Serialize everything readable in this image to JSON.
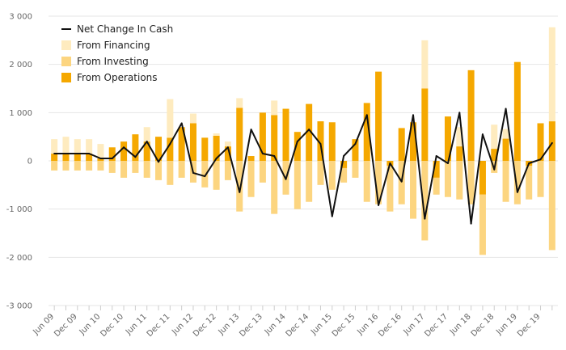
{
  "chart_data": {
    "type": "bar",
    "stacked": true,
    "title": "",
    "xlabel": "",
    "ylabel": "",
    "ylim": [
      -3000,
      3000
    ],
    "yticks": [
      -3000,
      -2000,
      -1000,
      0,
      1000,
      2000,
      3000
    ],
    "ytick_labels": [
      "-3 000",
      "-2 000",
      "-1 000",
      "0",
      "1 000",
      "2 000",
      "3 000"
    ],
    "grid": true,
    "legend_position": "top-left",
    "xtick_labels": [
      "Jun 09",
      "Dec 09",
      "Jun 10",
      "Dec 10",
      "Jun 11",
      "Dec 11",
      "Jun 12",
      "Dec 12",
      "Jun 13",
      "Dec 13",
      "Jun 14",
      "Dec 14",
      "Jun 15",
      "Dec 15",
      "Jun 16",
      "Dec 16",
      "Jun 17",
      "Dec 17",
      "Jun 18",
      "Dec 18",
      "Jun 19",
      "Dec 19"
    ],
    "x": [
      "Jun 09",
      "Sep 09",
      "Dec 09",
      "Mar 10",
      "Jun 10",
      "Sep 10",
      "Dec 10",
      "Mar 11",
      "Jun 11",
      "Sep 11",
      "Dec 11",
      "Mar 12",
      "Jun 12",
      "Sep 12",
      "Dec 12",
      "Mar 13",
      "Jun 13",
      "Sep 13",
      "Dec 13",
      "Mar 14",
      "Jun 14",
      "Sep 14",
      "Dec 14",
      "Mar 15",
      "Jun 15",
      "Sep 15",
      "Dec 15",
      "Mar 16",
      "Jun 16",
      "Sep 16",
      "Dec 16",
      "Mar 17",
      "Jun 17",
      "Sep 17",
      "Dec 17",
      "Mar 18",
      "Jun 18",
      "Sep 18",
      "Dec 18",
      "Mar 19",
      "Jun 19",
      "Sep 19",
      "Dec 19",
      "Mar 20"
    ],
    "series": [
      {
        "name": "From Operations",
        "color": "#f5a800",
        "kind": "bar",
        "values": [
          150,
          150,
          150,
          150,
          50,
          280,
          400,
          550,
          400,
          500,
          480,
          700,
          780,
          480,
          520,
          300,
          1100,
          100,
          1000,
          950,
          1080,
          600,
          1180,
          820,
          800,
          -150,
          450,
          1200,
          1850,
          -100,
          680,
          800,
          1500,
          -350,
          920,
          300,
          1880,
          -700,
          250,
          460,
          2050,
          -100,
          780,
          820
        ]
      },
      {
        "name": "From Investing",
        "color": "#fcd580",
        "kind": "bar",
        "values": [
          -200,
          -200,
          -200,
          -200,
          -200,
          -250,
          -350,
          -250,
          -350,
          -400,
          -500,
          -350,
          -450,
          -550,
          -600,
          -400,
          -1050,
          -750,
          -450,
          -1100,
          -700,
          -1000,
          -850,
          -500,
          -600,
          -300,
          -350,
          -850,
          -900,
          -950,
          -900,
          -1200,
          -1650,
          -350,
          -750,
          -800,
          -900,
          -1250,
          -250,
          -850,
          -900,
          -700,
          -750,
          -1850
        ]
      },
      {
        "name": "From Financing",
        "color": "#feebbf",
        "kind": "bar",
        "values": [
          300,
          350,
          300,
          300,
          300,
          0,
          0,
          0,
          300,
          0,
          800,
          0,
          200,
          0,
          50,
          100,
          200,
          0,
          0,
          300,
          0,
          0,
          0,
          0,
          0,
          0,
          0,
          0,
          0,
          0,
          0,
          0,
          1000,
          0,
          0,
          400,
          0,
          0,
          500,
          200,
          0,
          0,
          0,
          1950
        ]
      },
      {
        "name": "Net Change In Cash",
        "color": "#111111",
        "kind": "line",
        "values": [
          150,
          150,
          150,
          150,
          50,
          50,
          280,
          80,
          400,
          -20,
          350,
          780,
          -250,
          -320,
          50,
          280,
          -650,
          650,
          150,
          100,
          -380,
          400,
          650,
          350,
          -1150,
          100,
          350,
          950,
          -920,
          -50,
          -430,
          950,
          -1200,
          100,
          -50,
          1000,
          -1300,
          550,
          -180,
          1080,
          -650,
          -50,
          30,
          370
        ]
      }
    ],
    "legend": [
      "Net Change In Cash",
      "From Financing",
      "From Investing",
      "From Operations"
    ]
  }
}
